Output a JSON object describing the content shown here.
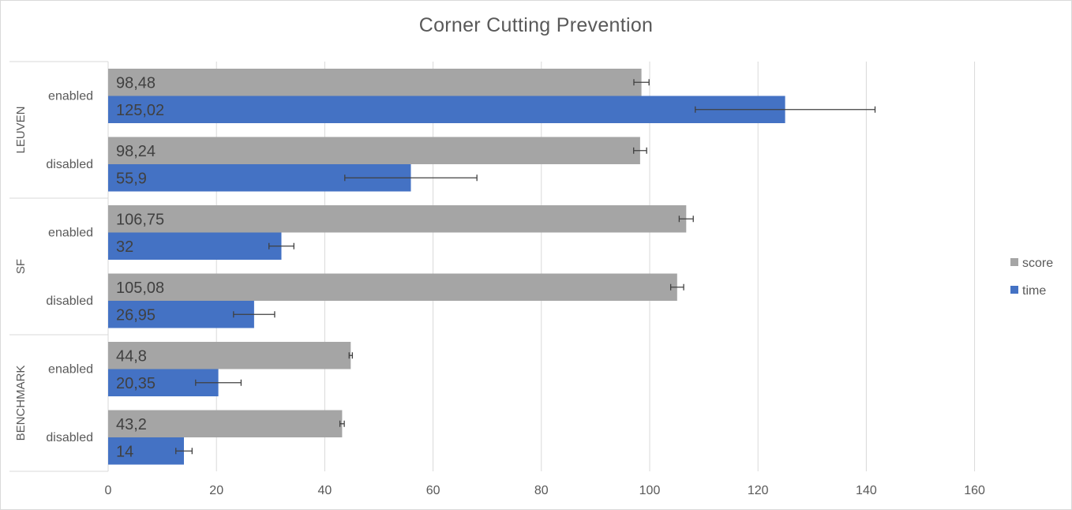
{
  "chart_data": {
    "type": "bar",
    "orientation": "horizontal",
    "title": "Corner Cutting Prevention",
    "xlabel": "",
    "ylabel": "",
    "xlim": [
      0,
      160
    ],
    "x_ticks": [
      "0",
      "20",
      "40",
      "60",
      "80",
      "100",
      "120",
      "140",
      "160"
    ],
    "grid": true,
    "legend_position": "right",
    "groups": [
      {
        "name": "LEUVEN",
        "categories": [
          "enabled",
          "disabled"
        ]
      },
      {
        "name": "SF",
        "categories": [
          "enabled",
          "disabled"
        ]
      },
      {
        "name": "BENCHMARK",
        "categories": [
          "enabled",
          "disabled"
        ]
      }
    ],
    "categories": [
      "LEUVEN enabled",
      "LEUVEN disabled",
      "SF enabled",
      "SF disabled",
      "BENCHMARK enabled",
      "BENCHMARK disabled"
    ],
    "series": [
      {
        "name": "score",
        "color": "#a5a5a5",
        "values": [
          98.48,
          98.24,
          106.75,
          105.08,
          44.8,
          43.2
        ],
        "labels": [
          "98,48",
          "98,24",
          "106,75",
          "105,08",
          "44,8",
          "43,2"
        ],
        "errors": [
          1.4,
          1.2,
          1.3,
          1.2,
          0.3,
          0.4
        ]
      },
      {
        "name": "time",
        "color": "#4472c4",
        "values": [
          125.02,
          55.9,
          32,
          26.95,
          20.35,
          14
        ],
        "labels": [
          "125,02",
          "55,9",
          "32",
          "26,95",
          "20,35",
          "14"
        ],
        "errors": [
          16.6,
          12.2,
          2.3,
          3.8,
          4.2,
          1.5
        ]
      }
    ]
  }
}
